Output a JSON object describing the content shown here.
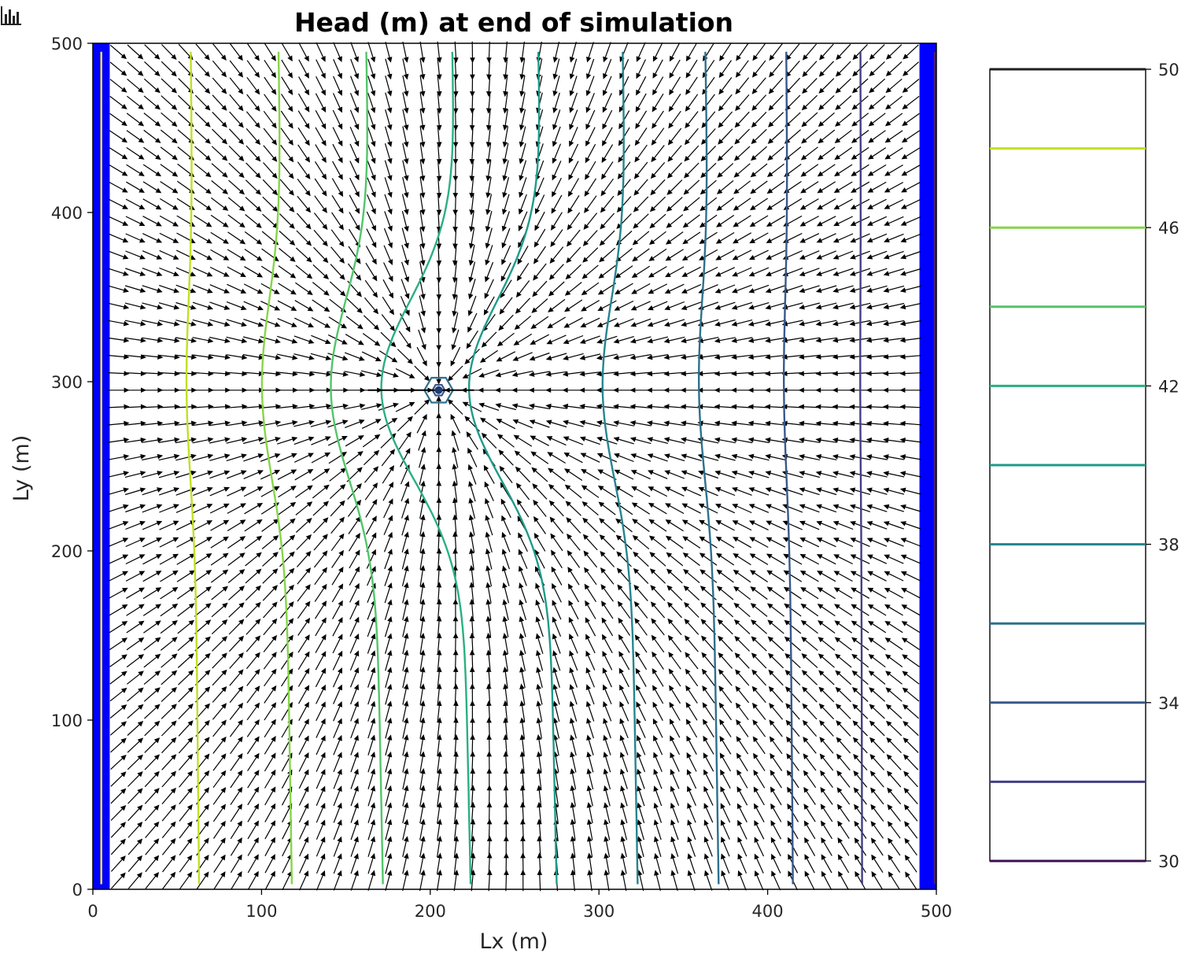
{
  "toolbar": {
    "icon": "bar-chart-icon"
  },
  "chart_data": {
    "type": "contour",
    "title": "Head (m) at end of simulation",
    "xlabel": "Lx (m)",
    "ylabel": "Ly (m)",
    "xlim": [
      0,
      500
    ],
    "ylim": [
      0,
      500
    ],
    "xticks": [
      0,
      100,
      200,
      300,
      400,
      500
    ],
    "yticks": [
      0,
      100,
      200,
      300,
      400,
      500
    ],
    "xtick_labels": [
      "0",
      "100",
      "200",
      "300",
      "400",
      "500"
    ],
    "ytick_labels": [
      "0",
      "100",
      "200",
      "300",
      "400",
      "500"
    ],
    "grid": false,
    "boundary_color": "#0000ff",
    "constant_head_boundaries": [
      {
        "name": "left",
        "x_range": [
          0,
          10
        ],
        "head": 50
      },
      {
        "name": "right",
        "x_range": [
          490,
          500
        ],
        "head": 30
      }
    ],
    "well": {
      "x": 205,
      "y": 295
    },
    "quiver": {
      "x_start": 5,
      "y_start": 5,
      "spacing": 10,
      "color": "#000000"
    },
    "contour_levels": [
      {
        "level": 50,
        "color": "#fde725",
        "x_top": 5,
        "x_bottom": 5,
        "x_mid": 5
      },
      {
        "level": 48,
        "color": "#c2df23",
        "x_top": 58,
        "x_bottom": 63,
        "x_mid": 56
      },
      {
        "level": 46,
        "color": "#86d549",
        "x_top": 110,
        "x_bottom": 118,
        "x_mid": 101
      },
      {
        "level": 44,
        "color": "#52c569",
        "x_top": 162,
        "x_bottom": 172,
        "x_mid": 142
      },
      {
        "level": 42,
        "color": "#2ab07f",
        "x_top": 213,
        "x_bottom": 224,
        "x_mid": 172
      },
      {
        "level": 40,
        "color": "#1e9b8a",
        "x_top": 264,
        "x_bottom": 275,
        "x_mid": 224
      },
      {
        "level": 38,
        "color": "#25858e",
        "x_top": 314,
        "x_bottom": 323,
        "x_mid": 303
      },
      {
        "level": 36,
        "color": "#2d708e",
        "x_top": 363,
        "x_bottom": 371,
        "x_mid": 360
      },
      {
        "level": 34,
        "color": "#38588c",
        "x_top": 411,
        "x_bottom": 415,
        "x_mid": 410
      },
      {
        "level": 32,
        "color": "#433e85",
        "x_top": 455,
        "x_bottom": 456,
        "x_mid": 455
      },
      {
        "level": 30,
        "color": "#482173",
        "x_top": 499,
        "x_bottom": 499,
        "x_mid": 499
      }
    ],
    "colorbar": {
      "range": [
        30,
        50
      ],
      "levels": [
        30,
        32,
        34,
        36,
        38,
        40,
        42,
        44,
        46,
        48,
        50
      ],
      "tick_values": [
        30,
        34,
        38,
        42,
        46,
        50
      ],
      "tick_labels": [
        "30",
        "34",
        "38",
        "42",
        "46",
        "50"
      ],
      "colors": [
        "#3b0f4f",
        "#433e85",
        "#38588c",
        "#2d708e",
        "#25858e",
        "#1e9b8a",
        "#2ab07f",
        "#52c569",
        "#86d549",
        "#c2df23",
        "#1f1f1f"
      ]
    }
  }
}
